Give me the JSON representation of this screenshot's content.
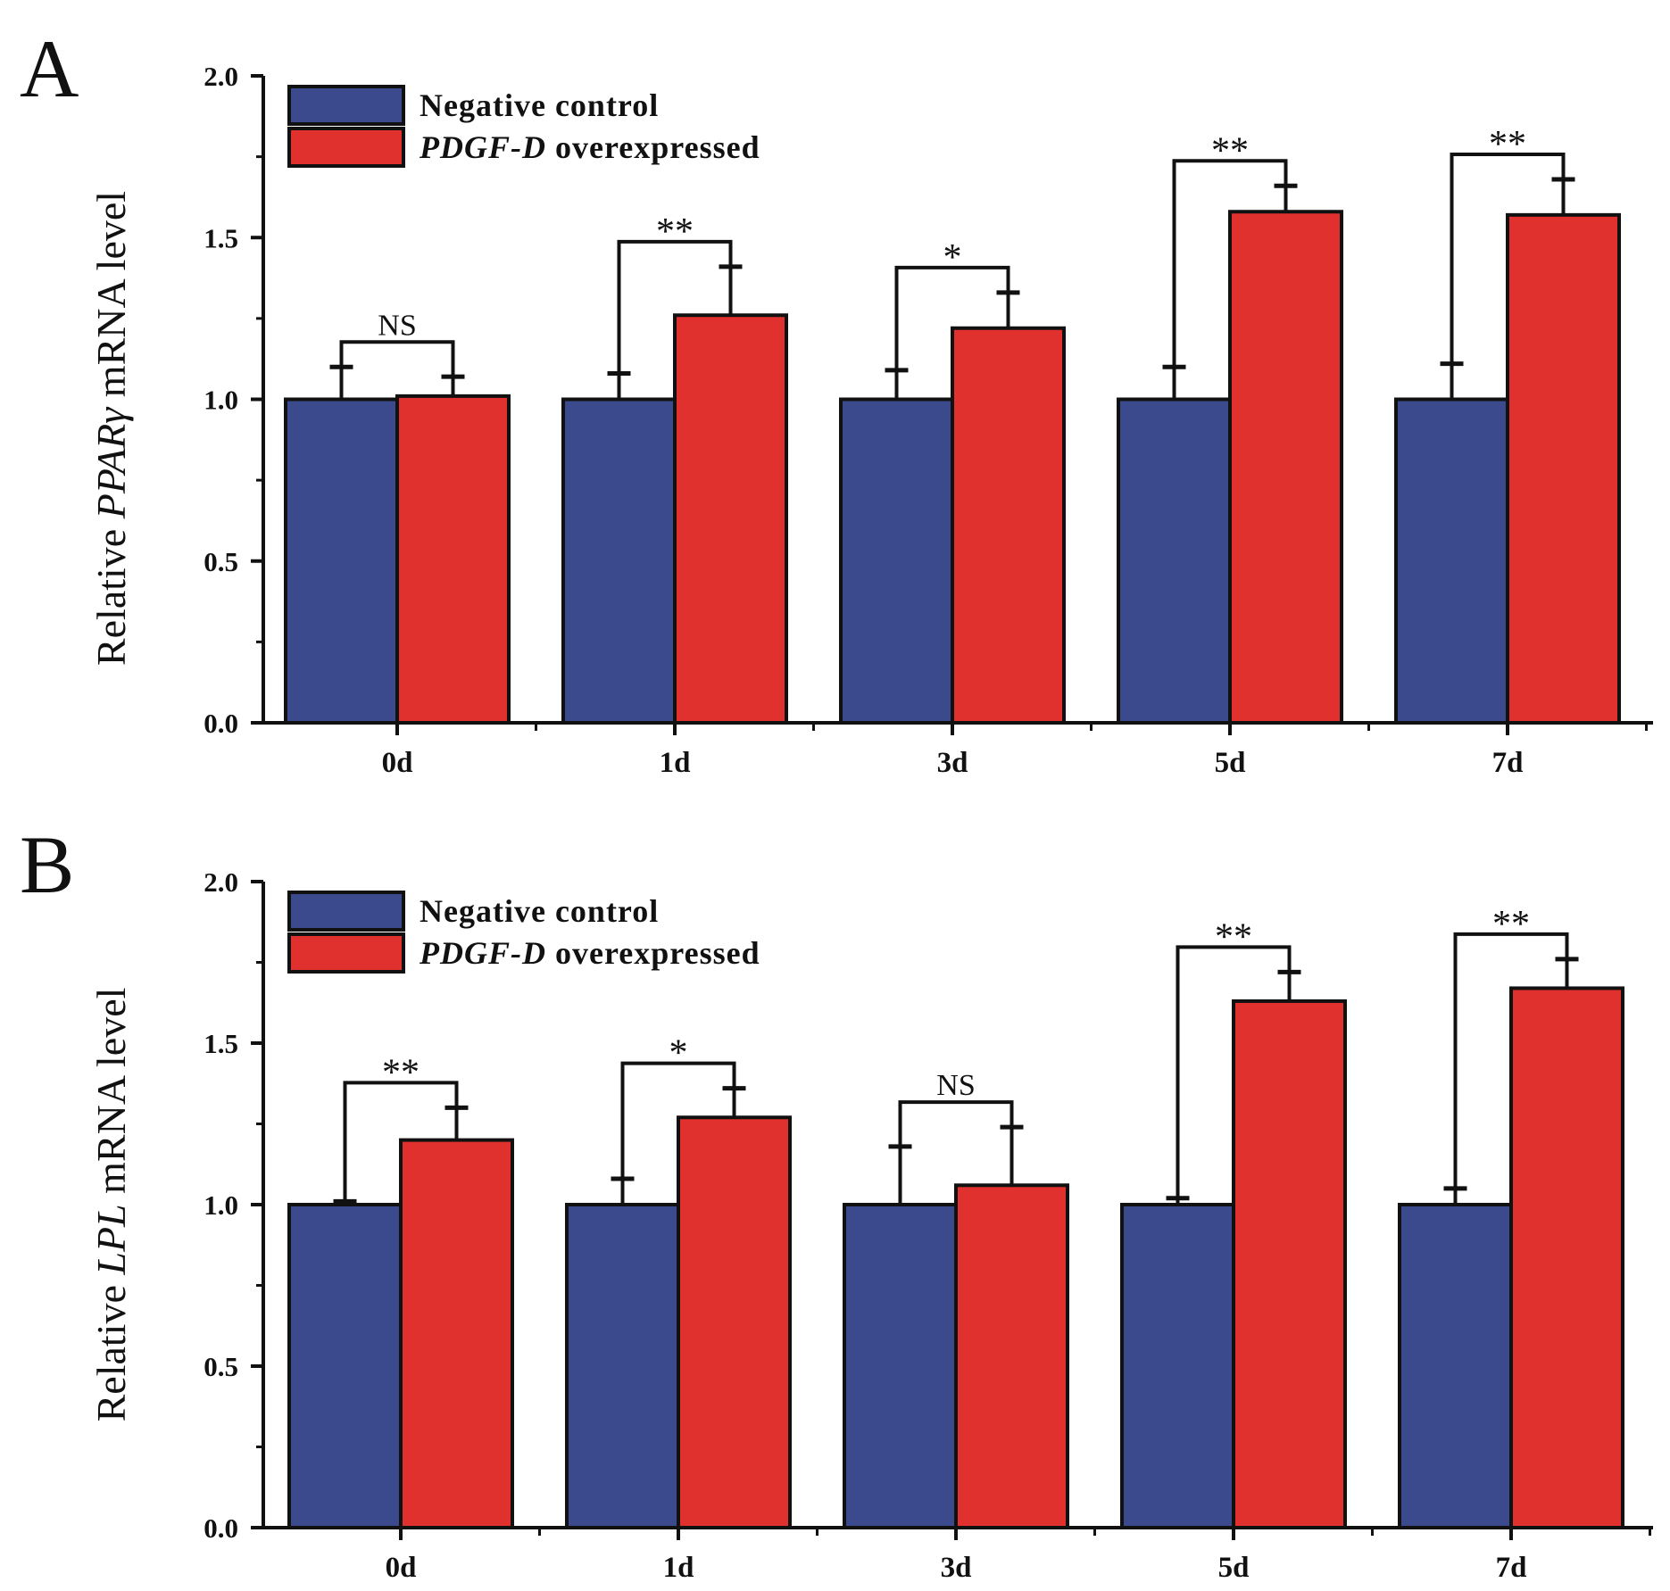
{
  "colors": {
    "negative_control": "#3b4a8c",
    "pdgf_overexpressed": "#e0312f",
    "axis": "#111111"
  },
  "chart_data": [
    {
      "type": "bar",
      "panel": "A",
      "ylabel": {
        "prefix": "Relative ",
        "gene": "PPARγ",
        "suffix": " mRNA level"
      },
      "xlabel": "",
      "ylim": [
        0,
        2.0
      ],
      "yticks": [
        "0.0",
        "0.5",
        "1.0",
        "1.5",
        "2.0"
      ],
      "categories": [
        "0d",
        "1d",
        "3d",
        "5d",
        "7d"
      ],
      "legend": {
        "position": "top-left",
        "items": [
          {
            "label_pre": "Negative control",
            "label_italic": "",
            "label_post": ""
          },
          {
            "label_pre": "",
            "label_italic": "PDGF-D",
            "label_post": " overexpressed"
          }
        ]
      },
      "series": [
        {
          "name": "Negative control",
          "values": [
            1.0,
            1.0,
            1.0,
            1.0,
            1.0
          ],
          "errors": [
            0.1,
            0.08,
            0.09,
            0.1,
            0.11
          ]
        },
        {
          "name": "PDGF-D overexpressed",
          "values": [
            1.01,
            1.26,
            1.22,
            1.58,
            1.57
          ],
          "errors": [
            0.06,
            0.15,
            0.11,
            0.08,
            0.11
          ]
        }
      ],
      "significance": [
        "NS",
        "**",
        "*",
        "**",
        "**"
      ]
    },
    {
      "type": "bar",
      "panel": "B",
      "ylabel": {
        "prefix": "Relative ",
        "gene": "LPL",
        "suffix": " mRNA level"
      },
      "xlabel": "",
      "ylim": [
        0,
        2.0
      ],
      "yticks": [
        "0.0",
        "0.5",
        "1.0",
        "1.5",
        "2.0"
      ],
      "categories": [
        "0d",
        "1d",
        "3d",
        "5d",
        "7d"
      ],
      "legend": {
        "position": "top-left",
        "items": [
          {
            "label_pre": "Negative control",
            "label_italic": "",
            "label_post": ""
          },
          {
            "label_pre": "",
            "label_italic": "PDGF-D",
            "label_post": " overexpressed"
          }
        ]
      },
      "series": [
        {
          "name": "Negative control",
          "values": [
            1.0,
            1.0,
            1.0,
            1.0,
            1.0
          ],
          "errors": [
            0.01,
            0.08,
            0.18,
            0.02,
            0.05
          ]
        },
        {
          "name": "PDGF-D overexpressed",
          "values": [
            1.2,
            1.27,
            1.06,
            1.63,
            1.67
          ],
          "errors": [
            0.1,
            0.09,
            0.18,
            0.09,
            0.09
          ]
        }
      ],
      "significance": [
        "**",
        "*",
        "NS",
        "**",
        "**"
      ]
    }
  ]
}
